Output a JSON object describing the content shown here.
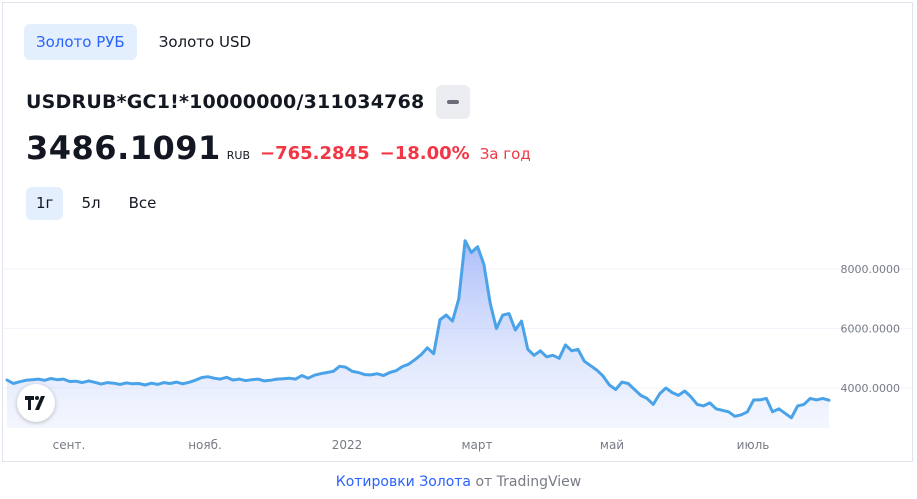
{
  "tabs": [
    {
      "label": "Золото РУБ",
      "active": true
    },
    {
      "label": "Золото USD",
      "active": false
    }
  ],
  "symbol": "USDRUB*GC1!*10000000/311034768",
  "price": "3486.1091",
  "currency": "RUB",
  "change": "−765.2845",
  "change_pct": "−18.00%",
  "period": "За год",
  "ranges": [
    {
      "label": "1г",
      "active": true
    },
    {
      "label": "5л",
      "active": false
    },
    {
      "label": "Все",
      "active": false
    }
  ],
  "footer": {
    "link_text": "Котировки Золота",
    "suffix": "от TradingView"
  },
  "colors": {
    "line": "#4aa3e8",
    "accent": "#2962ff",
    "negative": "#f23645"
  },
  "chart_data": {
    "type": "area",
    "x_tick_labels": [
      "сент.",
      "нояб.",
      "2022",
      "март",
      "май",
      "июль"
    ],
    "y_tick_labels": [
      "8000.0000",
      "6000.0000",
      "4000.0000"
    ],
    "ylim": [
      2750,
      9250
    ],
    "grid": true,
    "series": [
      {
        "values": [
          4270,
          4150,
          4210,
          4260,
          4280,
          4300,
          4260,
          4320,
          4280,
          4300,
          4220,
          4230,
          4180,
          4240,
          4190,
          4130,
          4180,
          4160,
          4120,
          4170,
          4140,
          4150,
          4100,
          4160,
          4120,
          4180,
          4150,
          4200,
          4140,
          4190,
          4260,
          4350,
          4380,
          4330,
          4300,
          4360,
          4270,
          4300,
          4250,
          4280,
          4300,
          4240,
          4260,
          4300,
          4310,
          4330,
          4300,
          4420,
          4330,
          4430,
          4480,
          4520,
          4560,
          4730,
          4700,
          4560,
          4520,
          4450,
          4440,
          4480,
          4420,
          4520,
          4580,
          4720,
          4800,
          4950,
          5120,
          5350,
          5150,
          6300,
          6450,
          6250,
          7000,
          8950,
          8550,
          8750,
          8150,
          6850,
          6000,
          6450,
          6500,
          5950,
          6250,
          5300,
          5100,
          5250,
          5050,
          5100,
          5000,
          5450,
          5250,
          5300,
          4900,
          4750,
          4600,
          4400,
          4100,
          3950,
          4200,
          4150,
          3950,
          3750,
          3650,
          3450,
          3800,
          4000,
          3850,
          3750,
          3900,
          3700,
          3450,
          3400,
          3500,
          3300,
          3250,
          3200,
          3050,
          3100,
          3200,
          3600,
          3600,
          3650,
          3200,
          3300,
          3150,
          3000,
          3400,
          3450,
          3650,
          3600,
          3650,
          3590
        ]
      }
    ]
  }
}
